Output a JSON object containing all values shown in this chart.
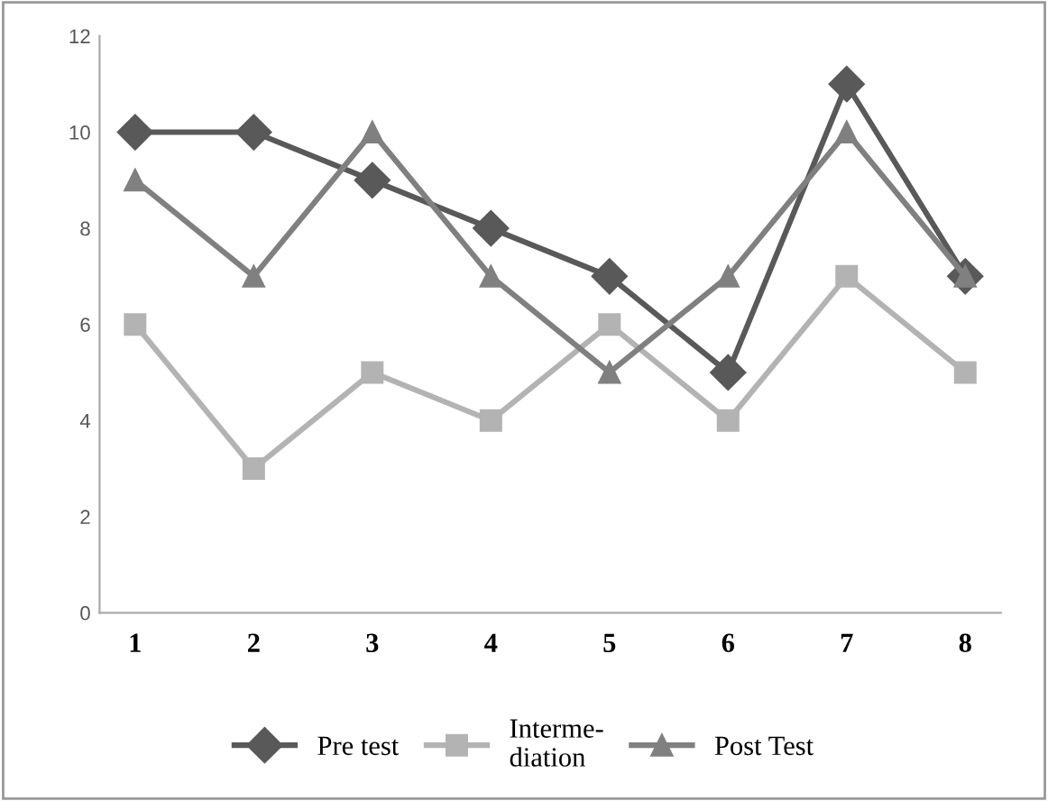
{
  "chart_data": {
    "type": "line",
    "categories": [
      "1",
      "2",
      "3",
      "4",
      "5",
      "6",
      "7",
      "8"
    ],
    "series": [
      {
        "name": "Pre test",
        "color": "#595959",
        "marker": "diamond",
        "values": [
          10,
          10,
          9,
          8,
          7,
          5,
          11,
          7
        ]
      },
      {
        "name": "Interme-\ndiation",
        "color": "#b3b3b3",
        "marker": "square",
        "values": [
          6,
          3,
          5,
          4,
          6,
          4,
          7,
          5
        ]
      },
      {
        "name": "Post Test",
        "color": "#808080",
        "marker": "triangle",
        "values": [
          9,
          7,
          10,
          7,
          5,
          7,
          10,
          7
        ]
      }
    ],
    "ylim": [
      0,
      12
    ],
    "yticks": [
      0,
      2,
      4,
      6,
      8,
      10,
      12
    ],
    "grid": false,
    "legend": "bottom",
    "line_style": "solid"
  }
}
